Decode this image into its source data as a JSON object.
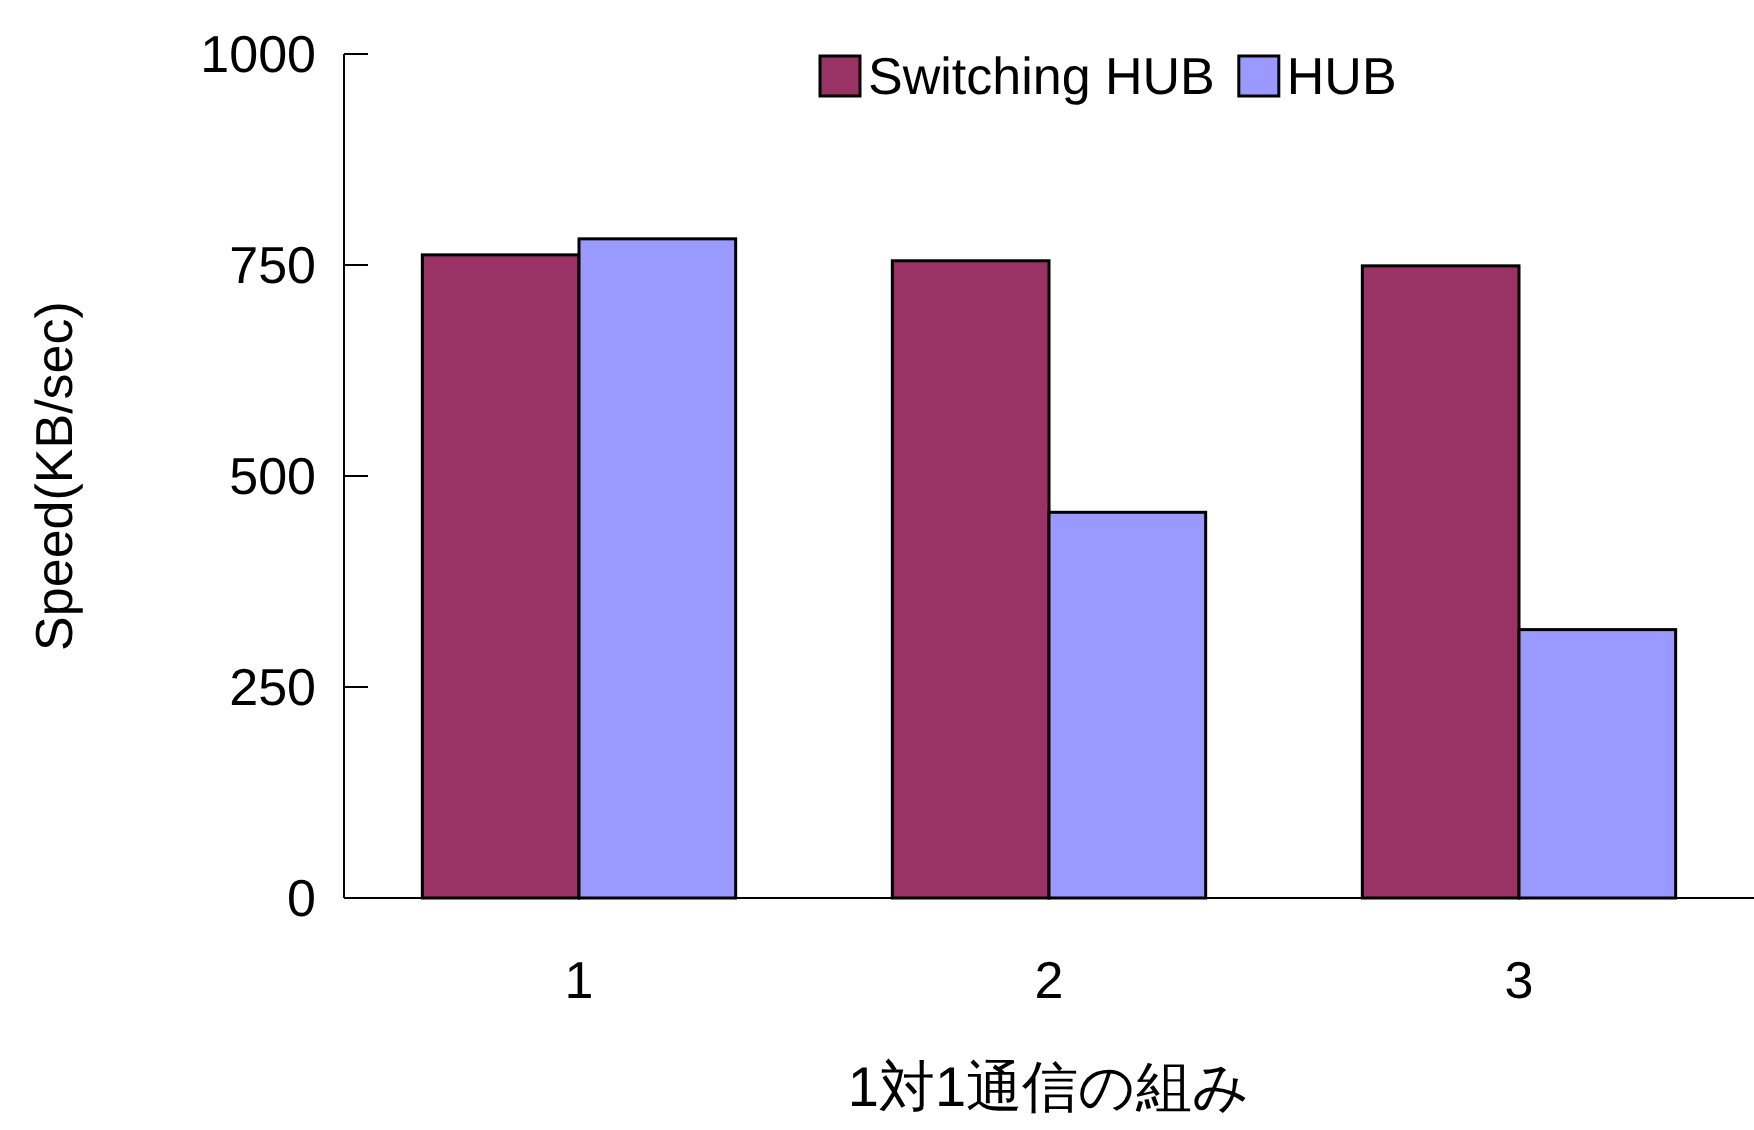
{
  "chart_data": {
    "type": "bar",
    "xlabel": "1対1通信の組み",
    "ylabel": "Speed(KB/sec)",
    "categories": [
      "1",
      "2",
      "3"
    ],
    "series": [
      {
        "name": "Switching HUB",
        "color": "#993366",
        "values": [
          762,
          755,
          749
        ]
      },
      {
        "name": "HUB",
        "color": "#9999ff",
        "values": [
          781,
          457,
          318
        ]
      }
    ],
    "ylim": [
      0,
      1000
    ],
    "yticks": [
      0,
      250,
      500,
      750,
      1000
    ],
    "grid": false,
    "legend": "top right"
  }
}
